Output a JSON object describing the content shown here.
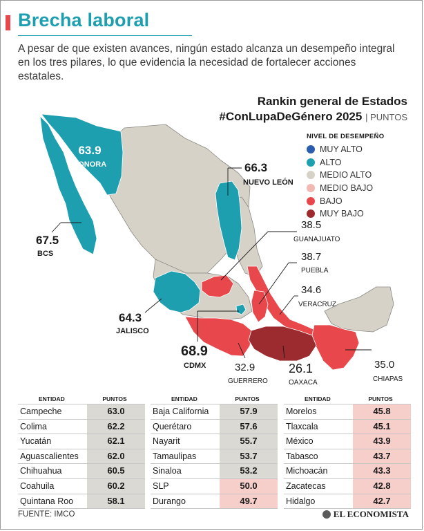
{
  "header": {
    "title": "Brecha laboral",
    "intro": "A pesar de que existen avances, ningún estado alcanza un desempeño integral en los tres pilares, lo que evidencia la necesidad de fortalecer acciones estatales."
  },
  "map_title": {
    "line1": "Rankin general de Estados",
    "line2": "#ConLupaDeGénero 2025",
    "unit": "PUNTOS"
  },
  "legend": {
    "title": "NIVEL DE DESEMPEÑO",
    "items": [
      {
        "label": "MUY ALTO",
        "color": "#2a5db0"
      },
      {
        "label": "ALTO",
        "color": "#1d9fb0"
      },
      {
        "label": "MEDIO ALTO",
        "color": "#d6d2c8"
      },
      {
        "label": "MEDIO BAJO",
        "color": "#f2b8b2"
      },
      {
        "label": "BAJO",
        "color": "#e8484b"
      },
      {
        "label": "MUY BAJO",
        "color": "#9b2b2e"
      }
    ]
  },
  "chart_data": {
    "type": "table",
    "title": "Rankin general de Estados #ConLupaDeGénero 2025",
    "unit": "PUNTOS",
    "map_labels": [
      {
        "value": "63.9",
        "name": "SONORA"
      },
      {
        "value": "66.3",
        "name": "NUEVO LEÓN"
      },
      {
        "value": "67.5",
        "name": "BCS"
      },
      {
        "value": "38.5",
        "name": "GUANAJUATO"
      },
      {
        "value": "38.7",
        "name": "PUEBLA"
      },
      {
        "value": "34.6",
        "name": "VERACRUZ"
      },
      {
        "value": "64.3",
        "name": "JALISCO"
      },
      {
        "value": "68.9",
        "name": "CDMX"
      },
      {
        "value": "32.9",
        "name": "GUERRERO"
      },
      {
        "value": "26.1",
        "name": "OAXACA"
      },
      {
        "value": "35.0",
        "name": "CHIAPAS"
      }
    ],
    "tables": [
      {
        "col_entity": "ENTIDAD",
        "col_points": "PUNTOS",
        "rows": [
          {
            "entity": "Campeche",
            "points": "63.0",
            "level": "medio-alto"
          },
          {
            "entity": "Colima",
            "points": "62.2",
            "level": "medio-alto"
          },
          {
            "entity": "Yucatán",
            "points": "62.1",
            "level": "medio-alto"
          },
          {
            "entity": "Aguascalientes",
            "points": "62.0",
            "level": "medio-alto"
          },
          {
            "entity": "Chihuahua",
            "points": "60.5",
            "level": "medio-alto"
          },
          {
            "entity": "Coahuila",
            "points": "60.2",
            "level": "medio-alto"
          },
          {
            "entity": "Quintana Roo",
            "points": "58.1",
            "level": "medio-alto"
          }
        ]
      },
      {
        "col_entity": "ENTIDAD",
        "col_points": "PUNTOS",
        "rows": [
          {
            "entity": "Baja California",
            "points": "57.9",
            "level": "medio-alto"
          },
          {
            "entity": "Querétaro",
            "points": "57.6",
            "level": "medio-alto"
          },
          {
            "entity": "Nayarit",
            "points": "55.7",
            "level": "medio-alto"
          },
          {
            "entity": "Tamaulipas",
            "points": "53.7",
            "level": "medio-alto"
          },
          {
            "entity": "Sinaloa",
            "points": "53.2",
            "level": "medio-alto"
          },
          {
            "entity": "SLP",
            "points": "50.0",
            "level": "medio-bajo"
          },
          {
            "entity": "Durango",
            "points": "49.7",
            "level": "medio-bajo"
          }
        ]
      },
      {
        "col_entity": "ENTIDAD",
        "col_points": "PUNTOS",
        "rows": [
          {
            "entity": "Morelos",
            "points": "45.8",
            "level": "medio-bajo"
          },
          {
            "entity": "Tlaxcala",
            "points": "45.1",
            "level": "medio-bajo"
          },
          {
            "entity": "México",
            "points": "43.9",
            "level": "medio-bajo"
          },
          {
            "entity": "Tabasco",
            "points": "43.7",
            "level": "medio-bajo"
          },
          {
            "entity": "Michoacán",
            "points": "43.3",
            "level": "medio-bajo"
          },
          {
            "entity": "Zacatecas",
            "points": "42.8",
            "level": "medio-bajo"
          },
          {
            "entity": "Hidalgo",
            "points": "42.7",
            "level": "medio-bajo"
          }
        ]
      }
    ]
  },
  "footer": {
    "source": "FUENTE: IMCO",
    "brand": "EL ECONOMISTA"
  }
}
